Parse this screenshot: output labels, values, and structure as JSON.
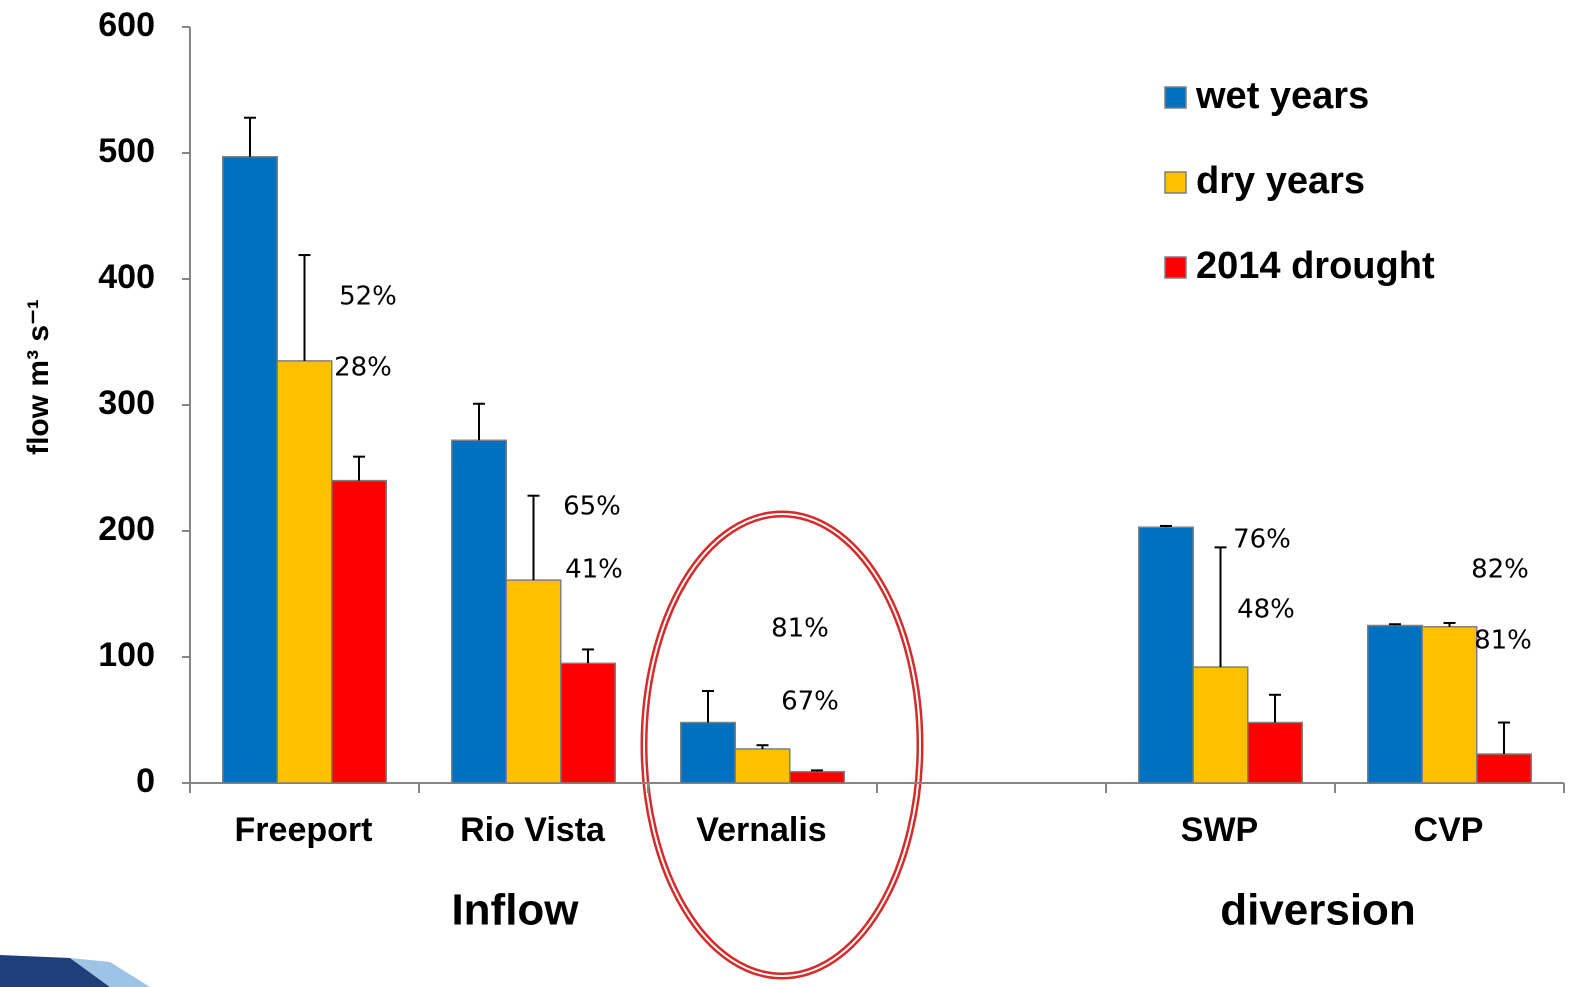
{
  "chart_data": {
    "type": "bar",
    "y_label": "flow  m³ s⁻¹",
    "categories": [
      "Freeport",
      "Rio Vista",
      "Vernalis",
      null,
      "SWP",
      "CVP"
    ],
    "series": [
      {
        "name": "wet years",
        "color": "#0070c0",
        "values": [
          497,
          272,
          48,
          null,
          203,
          125
        ],
        "errors": [
          31,
          29,
          25,
          null,
          1,
          1
        ]
      },
      {
        "name": "dry years",
        "color": "#ffc000",
        "values": [
          335,
          161,
          27,
          null,
          92,
          124
        ],
        "errors": [
          84,
          67,
          3,
          null,
          95,
          3
        ]
      },
      {
        "name": "2014 drought",
        "color": "#ff0000",
        "values": [
          240,
          95,
          9,
          null,
          48,
          23
        ],
        "errors": [
          19,
          11,
          1,
          null,
          22,
          25
        ]
      }
    ],
    "ylim": [
      0,
      600
    ],
    "yticks": [
      0,
      100,
      200,
      300,
      400,
      500,
      600
    ],
    "annotations": [
      "52%",
      "28%",
      "65%",
      "41%",
      "81%",
      "67%",
      "76%",
      "48%",
      "82%",
      "81%"
    ],
    "group_labels": [
      "Inflow",
      "diversion"
    ],
    "legend": "top-right"
  }
}
